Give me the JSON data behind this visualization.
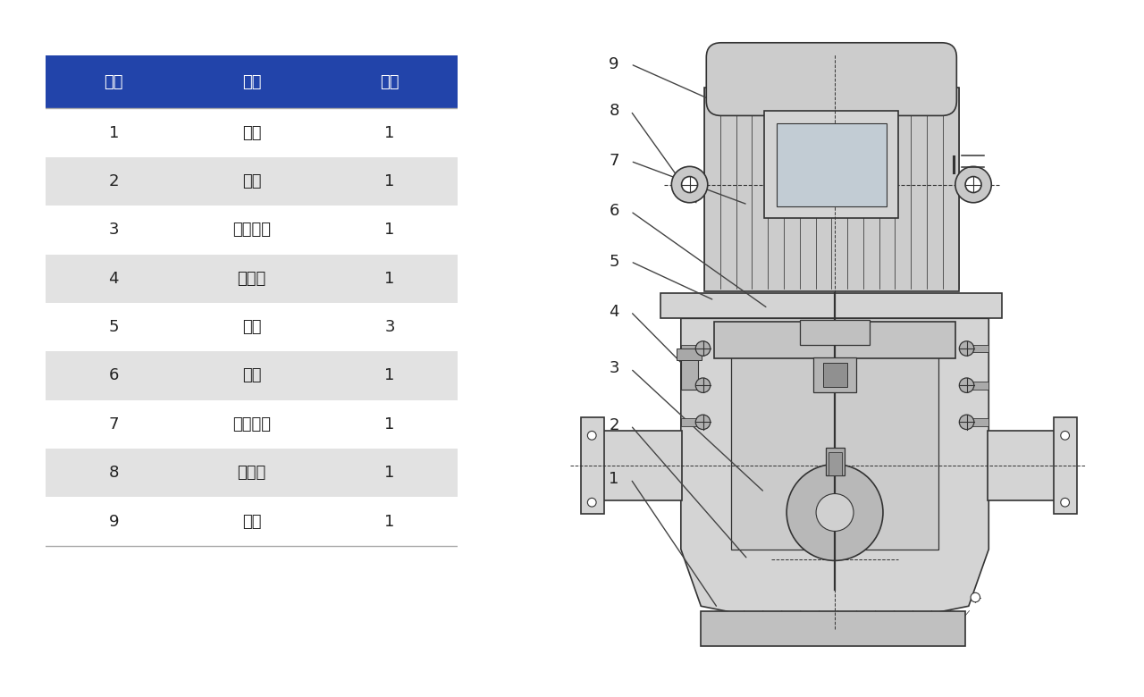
{
  "background_color": "#ffffff",
  "table": {
    "headers": [
      "编号",
      "名称",
      "数量"
    ],
    "rows": [
      [
        "1",
        "泵体",
        "1"
      ],
      [
        "2",
        "叶轮",
        "1"
      ],
      [
        "3",
        "叶轮螺母",
        "1"
      ],
      [
        "4",
        "放气阀",
        "1"
      ],
      [
        "5",
        "螺塞",
        "3"
      ],
      [
        "6",
        "泵盖",
        "1"
      ],
      [
        "7",
        "机械密封",
        "1"
      ],
      [
        "8",
        "挡水圈",
        "1"
      ],
      [
        "9",
        "电机",
        "1"
      ]
    ],
    "header_bg": "#2244aa",
    "header_text_color": "#ffffff",
    "row_bg_even": "#ffffff",
    "row_bg_odd": "#e2e2e2",
    "text_color": "#222222",
    "header_fontsize": 13,
    "row_fontsize": 13
  },
  "diagram": {
    "pump_body_color": "#d4d4d4",
    "motor_color": "#cccccc",
    "line_color": "#333333",
    "label_color": "#222222",
    "label_fontsize": 13,
    "annotation_line_color": "#444444"
  }
}
